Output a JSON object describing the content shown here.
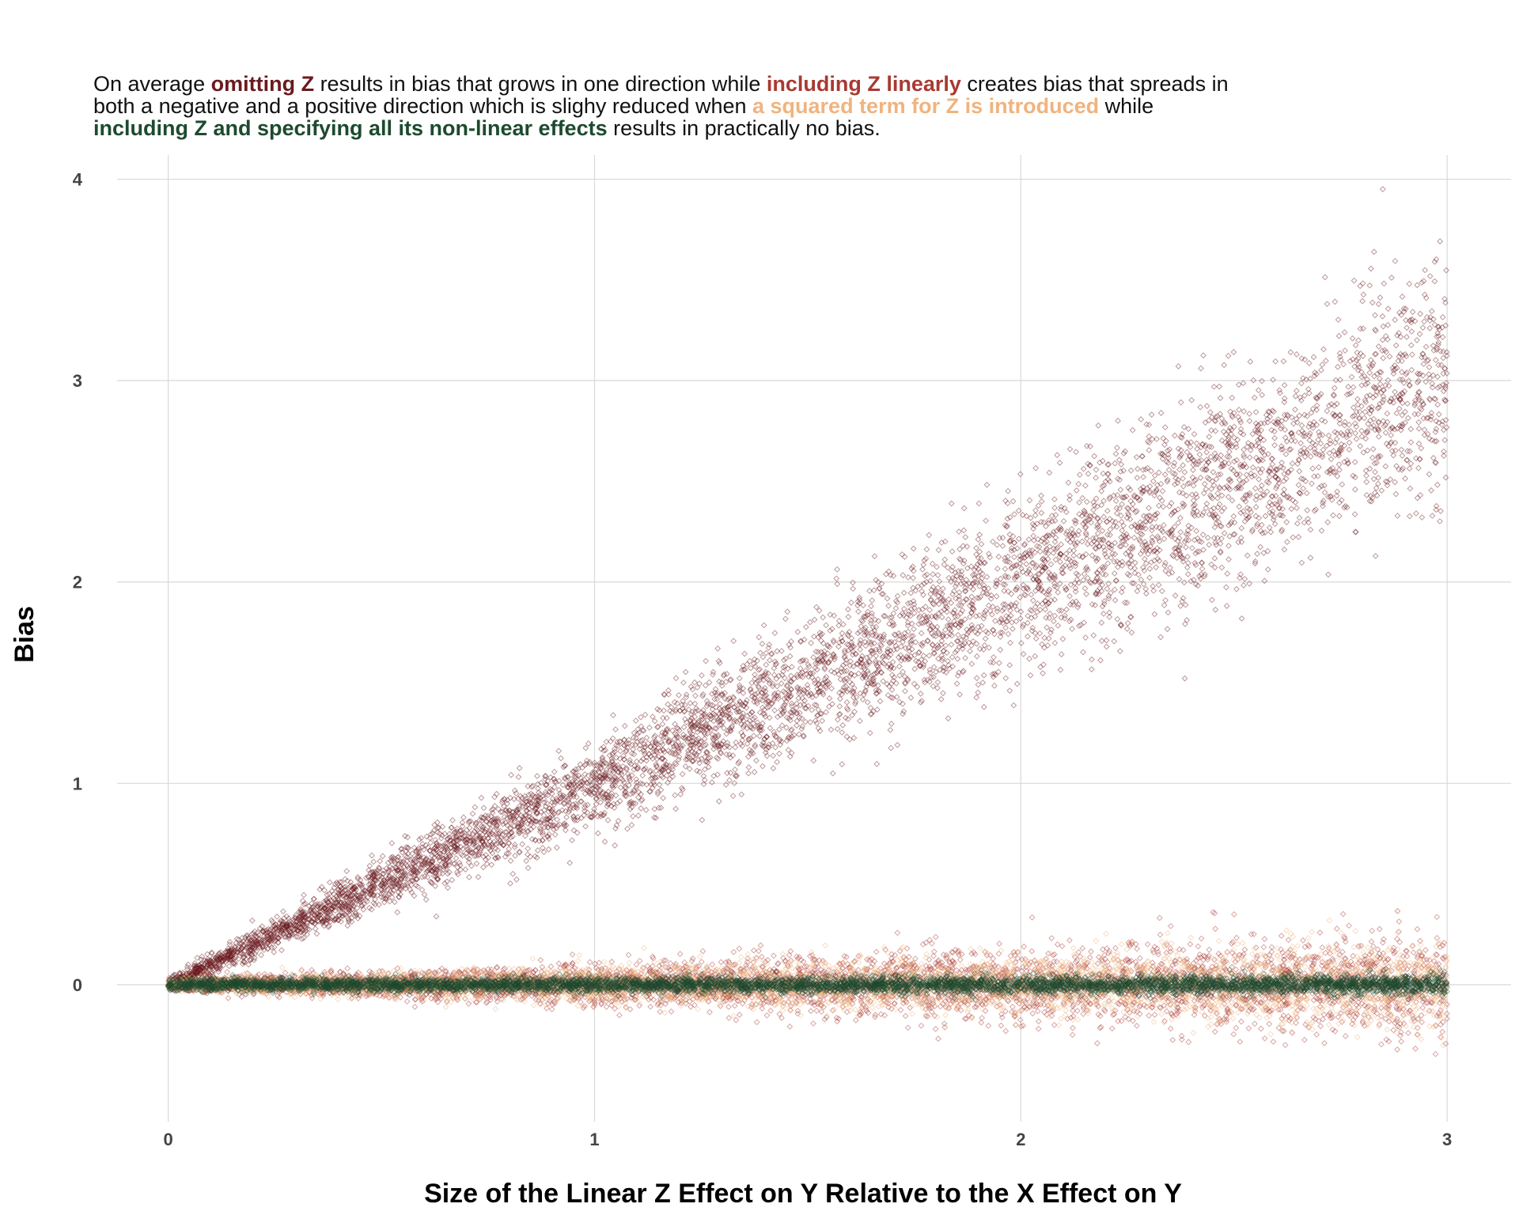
{
  "subtitle": {
    "segments": [
      {
        "text": "On average ",
        "bold": false,
        "color": "#111111"
      },
      {
        "text": "omitting Z",
        "bold": true,
        "color": "#6b1a1f"
      },
      {
        "text": " results in bias that grows in one direction while ",
        "bold": false,
        "color": "#111111"
      },
      {
        "text": "including Z linearly",
        "bold": true,
        "color": "#a83a32"
      },
      {
        "text": " creates bias that spreads in both a negative and a positive direction which is slighy reduced when ",
        "bold": false,
        "color": "#111111"
      },
      {
        "text": "a squared term for Z is introduced",
        "bold": true,
        "color": "#f0b37e"
      },
      {
        "text": " while ",
        "bold": false,
        "color": "#111111"
      },
      {
        "text": "including Z and specifying all its non-linear effects",
        "bold": true,
        "color": "#1d4a2e"
      },
      {
        "text": " results in practically no bias.",
        "bold": false,
        "color": "#111111"
      }
    ]
  },
  "chart_data": {
    "type": "scatter",
    "xlabel": "Size of the Linear Z Effect on Y Relative to the X Effect on Y",
    "ylabel": "Bias",
    "xlim": [
      -0.12,
      3.15
    ],
    "ylim": [
      -0.68,
      4.12
    ],
    "x_ticks": [
      0,
      1,
      2,
      3
    ],
    "y_ticks": [
      0,
      1,
      2,
      3,
      4
    ],
    "grid": true,
    "legend": "none",
    "point_shape": "open-diamond",
    "series": [
      {
        "name": "omitting Z",
        "color": "#6b1a1f",
        "count": 6000,
        "points": [
          [
            0.0,
            0.0
          ],
          [
            0.5,
            0.5
          ],
          [
            1.0,
            1.0
          ],
          [
            1.5,
            1.5
          ],
          [
            2.0,
            2.0
          ],
          [
            2.5,
            2.5
          ],
          [
            3.0,
            3.05
          ]
        ],
        "spread_sd_at_x3": 0.3
      },
      {
        "name": "including Z linearly",
        "color": "#a83a32",
        "count": 4500,
        "points": [
          [
            0.0,
            0.0
          ],
          [
            1.0,
            0.0
          ],
          [
            2.0,
            0.0
          ],
          [
            3.0,
            0.0
          ]
        ],
        "spread_sd_at_x3": 0.13
      },
      {
        "name": "a squared term for Z is introduced",
        "color": "#f0b37e",
        "count": 4500,
        "points": [
          [
            0.0,
            0.0
          ],
          [
            1.0,
            0.0
          ],
          [
            2.0,
            0.0
          ],
          [
            3.0,
            0.0
          ]
        ],
        "spread_sd_at_x3": 0.1
      },
      {
        "name": "including Z and specifying all its non-linear effects",
        "color": "#1d4a2e",
        "count": 6000,
        "points": [
          [
            0.0,
            0.0
          ],
          [
            1.0,
            0.0
          ],
          [
            2.0,
            0.0
          ],
          [
            3.0,
            0.0
          ]
        ],
        "spread_sd_at_x3": 0.025
      }
    ]
  }
}
